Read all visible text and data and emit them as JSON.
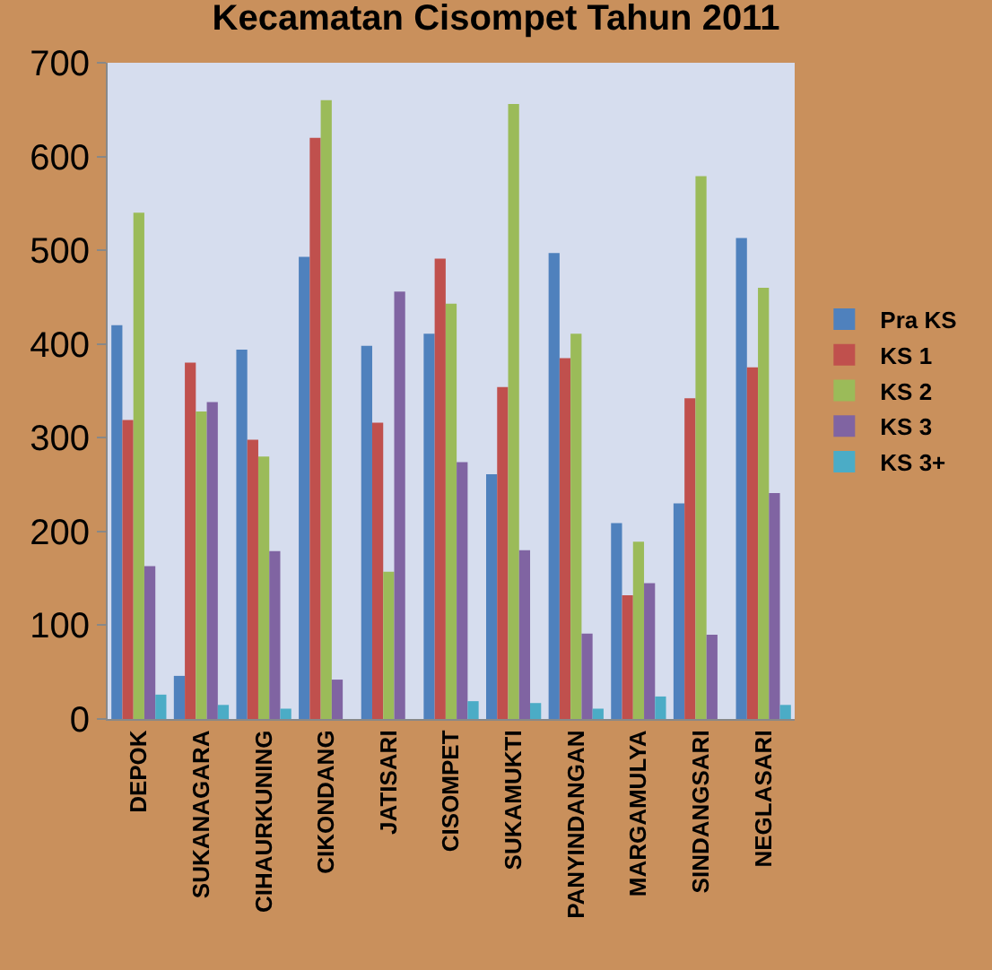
{
  "chart_data": {
    "type": "bar",
    "title": "Kecamatan Cisompet Tahun 2011",
    "categories": [
      "DEPOK",
      "SUKANAGARA",
      "CIHAURKUNING",
      "CIKONDANG",
      "JATISARI",
      "CISOMPET",
      "SUKAMUKTI",
      "PANYINDANGAN",
      "MARGAMULYA",
      "SINDANGSARI",
      "NEGLASARI"
    ],
    "series": [
      {
        "name": "Pra KS",
        "color": "#4f81bd",
        "values": [
          420,
          46,
          394,
          493,
          398,
          411,
          261,
          497,
          209,
          230,
          513
        ]
      },
      {
        "name": "KS 1",
        "color": "#c0504d",
        "values": [
          319,
          380,
          298,
          620,
          316,
          491,
          354,
          385,
          132,
          342,
          375
        ]
      },
      {
        "name": "KS 2",
        "color": "#9bbb59",
        "values": [
          540,
          328,
          280,
          660,
          157,
          443,
          656,
          411,
          189,
          579,
          460
        ]
      },
      {
        "name": "KS 3",
        "color": "#8064a2",
        "values": [
          163,
          338,
          179,
          42,
          456,
          274,
          180,
          91,
          145,
          90,
          241
        ]
      },
      {
        "name": "KS 3+",
        "color": "#4bacc6",
        "values": [
          26,
          15,
          11,
          0,
          0,
          19,
          17,
          11,
          24,
          0,
          15
        ]
      }
    ],
    "ylim": [
      0,
      700
    ],
    "yticks": [
      0,
      100,
      200,
      300,
      400,
      500,
      600,
      700
    ],
    "grid": false,
    "legend": "right"
  }
}
